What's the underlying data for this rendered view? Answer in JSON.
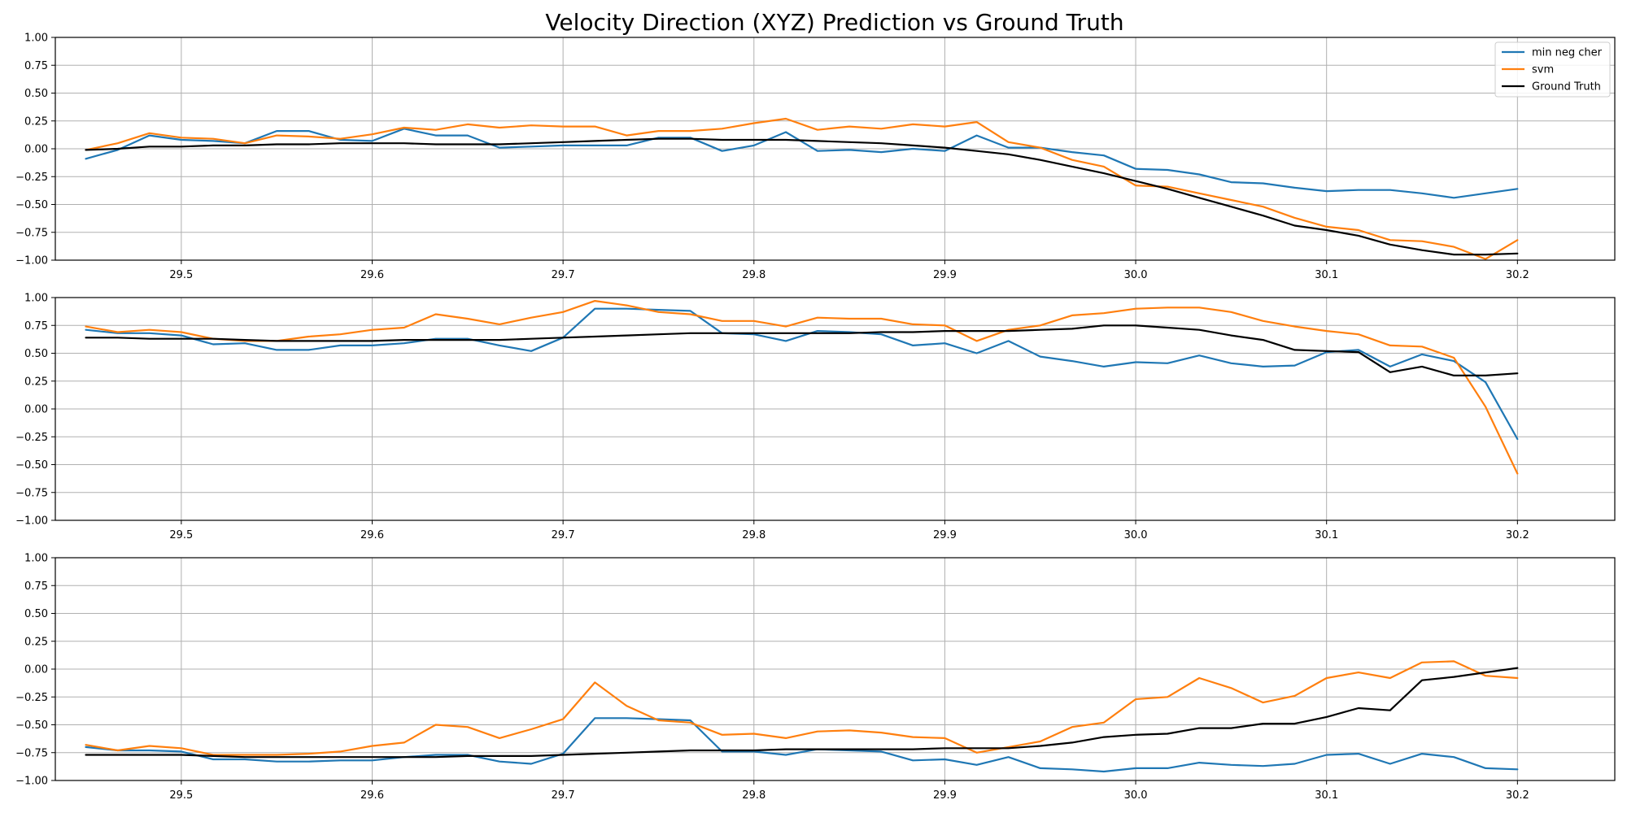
{
  "chart_data": {
    "type": "line",
    "title": "Velocity Direction (XYZ) Prediction vs Ground Truth",
    "legend_placement": "top-right",
    "grid": true,
    "xlim": [
      29.434,
      30.251
    ],
    "ylim": [
      -1.0,
      1.0
    ],
    "x_ticks": [
      "29.5",
      "29.6",
      "29.7",
      "29.8",
      "29.9",
      "30.0",
      "30.1",
      "30.2"
    ],
    "x_tick_values": [
      29.5,
      29.6,
      29.7,
      29.8,
      29.9,
      30.0,
      30.1,
      30.2
    ],
    "y_ticks": [
      "1.00",
      "0.75",
      "0.50",
      "0.25",
      "0.00",
      "−0.25",
      "−0.50",
      "−0.75",
      "−1.00"
    ],
    "y_tick_values": [
      1.0,
      0.75,
      0.5,
      0.25,
      0.0,
      -0.25,
      -0.5,
      -0.75,
      -1.0
    ],
    "x": [
      29.45,
      29.4667,
      29.4833,
      29.5,
      29.5167,
      29.5333,
      29.55,
      29.5667,
      29.5833,
      29.6,
      29.6167,
      29.6333,
      29.65,
      29.6667,
      29.6833,
      29.7,
      29.7167,
      29.7333,
      29.75,
      29.7667,
      29.7833,
      29.8,
      29.8167,
      29.8333,
      29.85,
      29.8667,
      29.8833,
      29.9,
      29.9167,
      29.9333,
      29.95,
      29.9667,
      29.9833,
      30.0,
      30.0167,
      30.0333,
      30.05,
      30.0667,
      30.0833,
      30.1,
      30.1167,
      30.1333,
      30.15,
      30.1667,
      30.1833,
      30.2
    ],
    "legend": [
      {
        "name": "min neg cher",
        "color": "#1f77b4"
      },
      {
        "name": "svm",
        "color": "#ff7f0e"
      },
      {
        "name": "Ground Truth",
        "color": "#000000"
      }
    ],
    "subplots": [
      {
        "series": [
          {
            "name": "min neg cher",
            "color": "#1f77b4",
            "values": [
              -0.09,
              -0.01,
              0.12,
              0.08,
              0.07,
              0.05,
              0.16,
              0.16,
              0.08,
              0.07,
              0.18,
              0.12,
              0.12,
              0.01,
              0.02,
              0.03,
              0.03,
              0.03,
              0.1,
              0.1,
              -0.02,
              0.03,
              0.15,
              -0.02,
              -0.01,
              -0.03,
              0.0,
              -0.02,
              0.12,
              0.01,
              0.01,
              -0.03,
              -0.06,
              -0.18,
              -0.19,
              -0.23,
              -0.3,
              -0.31,
              -0.35,
              -0.38,
              -0.37,
              -0.37,
              -0.4,
              -0.44,
              -0.4,
              -0.36
            ]
          },
          {
            "name": "svm",
            "color": "#ff7f0e",
            "values": [
              -0.01,
              0.05,
              0.14,
              0.1,
              0.09,
              0.05,
              0.12,
              0.11,
              0.09,
              0.13,
              0.19,
              0.17,
              0.22,
              0.19,
              0.21,
              0.2,
              0.2,
              0.12,
              0.16,
              0.16,
              0.18,
              0.23,
              0.27,
              0.17,
              0.2,
              0.18,
              0.22,
              0.2,
              0.24,
              0.06,
              0.01,
              -0.1,
              -0.16,
              -0.33,
              -0.34,
              -0.4,
              -0.46,
              -0.52,
              -0.62,
              -0.7,
              -0.73,
              -0.82,
              -0.83,
              -0.88,
              -0.99,
              -0.82
            ]
          },
          {
            "name": "Ground Truth",
            "color": "#000000",
            "values": [
              -0.01,
              0.0,
              0.02,
              0.02,
              0.03,
              0.03,
              0.04,
              0.04,
              0.05,
              0.05,
              0.05,
              0.04,
              0.04,
              0.04,
              0.05,
              0.06,
              0.07,
              0.08,
              0.09,
              0.09,
              0.08,
              0.08,
              0.08,
              0.07,
              0.06,
              0.05,
              0.03,
              0.01,
              -0.02,
              -0.05,
              -0.1,
              -0.16,
              -0.22,
              -0.29,
              -0.36,
              -0.44,
              -0.52,
              -0.6,
              -0.69,
              -0.73,
              -0.78,
              -0.86,
              -0.91,
              -0.95,
              -0.95,
              -0.94
            ]
          }
        ]
      },
      {
        "series": [
          {
            "name": "min neg cher",
            "color": "#1f77b4",
            "values": [
              0.71,
              0.68,
              0.68,
              0.66,
              0.58,
              0.59,
              0.53,
              0.53,
              0.57,
              0.57,
              0.59,
              0.63,
              0.63,
              0.57,
              0.52,
              0.64,
              0.9,
              0.9,
              0.89,
              0.88,
              0.68,
              0.67,
              0.61,
              0.7,
              0.69,
              0.67,
              0.57,
              0.59,
              0.5,
              0.61,
              0.47,
              0.43,
              0.38,
              0.42,
              0.41,
              0.48,
              0.41,
              0.38,
              0.39,
              0.51,
              0.53,
              0.38,
              0.49,
              0.43,
              0.24,
              -0.27
            ]
          },
          {
            "name": "svm",
            "color": "#ff7f0e",
            "values": [
              0.74,
              0.69,
              0.71,
              0.69,
              0.63,
              0.61,
              0.61,
              0.65,
              0.67,
              0.71,
              0.73,
              0.85,
              0.81,
              0.76,
              0.82,
              0.87,
              0.97,
              0.93,
              0.87,
              0.85,
              0.79,
              0.79,
              0.74,
              0.82,
              0.81,
              0.81,
              0.76,
              0.75,
              0.61,
              0.71,
              0.75,
              0.84,
              0.86,
              0.9,
              0.91,
              0.91,
              0.87,
              0.79,
              0.74,
              0.7,
              0.67,
              0.57,
              0.56,
              0.46,
              0.02,
              -0.58
            ]
          },
          {
            "name": "Ground Truth",
            "color": "#000000",
            "values": [
              0.64,
              0.64,
              0.63,
              0.63,
              0.63,
              0.62,
              0.61,
              0.61,
              0.61,
              0.61,
              0.62,
              0.62,
              0.62,
              0.62,
              0.63,
              0.64,
              0.65,
              0.66,
              0.67,
              0.68,
              0.68,
              0.68,
              0.68,
              0.68,
              0.68,
              0.69,
              0.69,
              0.7,
              0.7,
              0.7,
              0.71,
              0.72,
              0.75,
              0.75,
              0.73,
              0.71,
              0.66,
              0.62,
              0.53,
              0.52,
              0.51,
              0.33,
              0.38,
              0.3,
              0.3,
              0.32
            ]
          }
        ]
      },
      {
        "series": [
          {
            "name": "min neg cher",
            "color": "#1f77b4",
            "values": [
              -0.7,
              -0.73,
              -0.73,
              -0.74,
              -0.81,
              -0.81,
              -0.83,
              -0.83,
              -0.82,
              -0.82,
              -0.79,
              -0.77,
              -0.77,
              -0.83,
              -0.85,
              -0.76,
              -0.44,
              -0.44,
              -0.45,
              -0.46,
              -0.74,
              -0.74,
              -0.77,
              -0.72,
              -0.73,
              -0.74,
              -0.82,
              -0.81,
              -0.86,
              -0.79,
              -0.89,
              -0.9,
              -0.92,
              -0.89,
              -0.89,
              -0.84,
              -0.86,
              -0.87,
              -0.85,
              -0.77,
              -0.76,
              -0.85,
              -0.76,
              -0.79,
              -0.89,
              -0.9
            ]
          },
          {
            "name": "svm",
            "color": "#ff7f0e",
            "values": [
              -0.68,
              -0.73,
              -0.69,
              -0.71,
              -0.77,
              -0.77,
              -0.77,
              -0.76,
              -0.74,
              -0.69,
              -0.66,
              -0.5,
              -0.52,
              -0.62,
              -0.54,
              -0.45,
              -0.12,
              -0.33,
              -0.46,
              -0.48,
              -0.59,
              -0.58,
              -0.62,
              -0.56,
              -0.55,
              -0.57,
              -0.61,
              -0.62,
              -0.75,
              -0.7,
              -0.65,
              -0.52,
              -0.48,
              -0.27,
              -0.25,
              -0.08,
              -0.17,
              -0.3,
              -0.24,
              -0.08,
              -0.03,
              -0.08,
              0.06,
              0.07,
              -0.06,
              -0.08
            ]
          },
          {
            "name": "Ground Truth",
            "color": "#000000",
            "values": [
              -0.77,
              -0.77,
              -0.77,
              -0.77,
              -0.78,
              -0.79,
              -0.79,
              -0.79,
              -0.79,
              -0.79,
              -0.79,
              -0.79,
              -0.78,
              -0.78,
              -0.78,
              -0.77,
              -0.76,
              -0.75,
              -0.74,
              -0.73,
              -0.73,
              -0.73,
              -0.72,
              -0.72,
              -0.72,
              -0.72,
              -0.72,
              -0.71,
              -0.71,
              -0.71,
              -0.69,
              -0.66,
              -0.61,
              -0.59,
              -0.58,
              -0.53,
              -0.53,
              -0.49,
              -0.49,
              -0.43,
              -0.35,
              -0.37,
              -0.1,
              -0.07,
              -0.03,
              0.01
            ]
          }
        ]
      }
    ]
  }
}
